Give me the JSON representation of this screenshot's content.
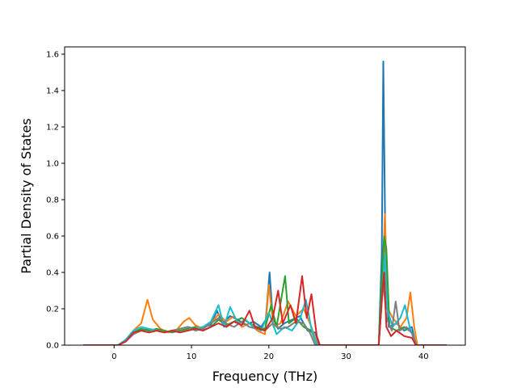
{
  "chart_data": {
    "type": "line",
    "title": "",
    "xlabel": "Frequency (THz)",
    "ylabel": "Partial Density of States",
    "xlim": [
      -6.4,
      45.4
    ],
    "ylim": [
      0.0,
      1.64
    ],
    "xticks": [
      0,
      10,
      20,
      30,
      40
    ],
    "yticks": [
      0.0,
      0.2,
      0.4,
      0.6,
      0.8,
      1.0,
      1.2,
      1.4,
      1.6
    ],
    "xtick_labels": [
      "0",
      "10",
      "20",
      "30",
      "40"
    ],
    "ytick_labels": [
      "0.0",
      "0.2",
      "0.4",
      "0.6",
      "0.8",
      "1.0",
      "1.2",
      "1.4",
      "1.6"
    ],
    "grid": false,
    "legend": "none",
    "series": [
      {
        "color": "#1f77b4",
        "points": [
          [
            -4,
            0
          ],
          [
            0.5,
            0
          ],
          [
            1.5,
            0.02
          ],
          [
            2.5,
            0.07
          ],
          [
            3.5,
            0.08
          ],
          [
            4.5,
            0.09
          ],
          [
            5.5,
            0.08
          ],
          [
            6.5,
            0.07
          ],
          [
            7.5,
            0.08
          ],
          [
            8.5,
            0.09
          ],
          [
            9.5,
            0.1
          ],
          [
            10.5,
            0.09
          ],
          [
            11.5,
            0.1
          ],
          [
            12.5,
            0.11
          ],
          [
            13.3,
            0.19
          ],
          [
            14,
            0.12
          ],
          [
            15,
            0.16
          ],
          [
            16,
            0.14
          ],
          [
            17,
            0.11
          ],
          [
            18,
            0.13
          ],
          [
            19,
            0.1
          ],
          [
            19.6,
            0.14
          ],
          [
            20.1,
            0.4
          ],
          [
            20.5,
            0.15
          ],
          [
            21.2,
            0.09
          ],
          [
            22,
            0.12
          ],
          [
            23,
            0.14
          ],
          [
            24,
            0.16
          ],
          [
            25,
            0.08
          ],
          [
            26,
            0.07
          ],
          [
            26.5,
            0.0
          ],
          [
            34.2,
            0.0
          ],
          [
            34.6,
            0.5
          ],
          [
            34.8,
            1.56
          ],
          [
            35.1,
            0.4
          ],
          [
            35.5,
            0.1
          ],
          [
            36.5,
            0.12
          ],
          [
            37.5,
            0.08
          ],
          [
            38.5,
            0.1
          ],
          [
            39,
            0.0
          ],
          [
            43,
            0
          ]
        ]
      },
      {
        "color": "#ff7f0e",
        "points": [
          [
            -4,
            0
          ],
          [
            0.5,
            0
          ],
          [
            1.5,
            0.03
          ],
          [
            2.5,
            0.08
          ],
          [
            3.5,
            0.12
          ],
          [
            4.3,
            0.25
          ],
          [
            5,
            0.14
          ],
          [
            6,
            0.09
          ],
          [
            7,
            0.07
          ],
          [
            8,
            0.08
          ],
          [
            9,
            0.13
          ],
          [
            9.7,
            0.15
          ],
          [
            10.5,
            0.11
          ],
          [
            11.5,
            0.09
          ],
          [
            12.5,
            0.12
          ],
          [
            13.5,
            0.17
          ],
          [
            14.5,
            0.13
          ],
          [
            15.5,
            0.16
          ],
          [
            16.5,
            0.1
          ],
          [
            17.5,
            0.12
          ],
          [
            18.5,
            0.08
          ],
          [
            19.5,
            0.06
          ],
          [
            20,
            0.33
          ],
          [
            20.6,
            0.1
          ],
          [
            21.5,
            0.12
          ],
          [
            22.5,
            0.24
          ],
          [
            23.5,
            0.16
          ],
          [
            24.5,
            0.2
          ],
          [
            25.5,
            0.1
          ],
          [
            26.3,
            0.0
          ],
          [
            34.2,
            0.0
          ],
          [
            34.7,
            0.3
          ],
          [
            35.0,
            0.72
          ],
          [
            35.4,
            0.2
          ],
          [
            36,
            0.15
          ],
          [
            37,
            0.1
          ],
          [
            37.8,
            0.15
          ],
          [
            38.3,
            0.29
          ],
          [
            38.8,
            0.1
          ],
          [
            39.2,
            0.0
          ],
          [
            43,
            0
          ]
        ]
      },
      {
        "color": "#2ca02c",
        "points": [
          [
            -4,
            0
          ],
          [
            0.5,
            0
          ],
          [
            1.5,
            0.02
          ],
          [
            2.5,
            0.07
          ],
          [
            3.5,
            0.09
          ],
          [
            4.5,
            0.08
          ],
          [
            5.5,
            0.09
          ],
          [
            6.5,
            0.08
          ],
          [
            7.5,
            0.07
          ],
          [
            8.5,
            0.08
          ],
          [
            9.5,
            0.09
          ],
          [
            10.5,
            0.1
          ],
          [
            11.5,
            0.08
          ],
          [
            12.5,
            0.1
          ],
          [
            13.5,
            0.14
          ],
          [
            14.5,
            0.11
          ],
          [
            15.5,
            0.13
          ],
          [
            16.5,
            0.15
          ],
          [
            17.5,
            0.12
          ],
          [
            18.5,
            0.1
          ],
          [
            19.5,
            0.09
          ],
          [
            20.3,
            0.22
          ],
          [
            21,
            0.1
          ],
          [
            22.1,
            0.38
          ],
          [
            22.6,
            0.12
          ],
          [
            23.5,
            0.15
          ],
          [
            24.5,
            0.1
          ],
          [
            25.5,
            0.08
          ],
          [
            26.2,
            0.0
          ],
          [
            34.2,
            0.0
          ],
          [
            34.7,
            0.45
          ],
          [
            34.9,
            0.6
          ],
          [
            35.2,
            0.53
          ],
          [
            35.6,
            0.1
          ],
          [
            36.5,
            0.08
          ],
          [
            37.5,
            0.1
          ],
          [
            38.5,
            0.07
          ],
          [
            39,
            0.0
          ],
          [
            43,
            0
          ]
        ]
      },
      {
        "color": "#17becf",
        "points": [
          [
            -4,
            0
          ],
          [
            0.5,
            0
          ],
          [
            1.5,
            0.03
          ],
          [
            2.5,
            0.08
          ],
          [
            3.5,
            0.1
          ],
          [
            4.5,
            0.09
          ],
          [
            5.5,
            0.08
          ],
          [
            6.5,
            0.07
          ],
          [
            7.5,
            0.08
          ],
          [
            8.5,
            0.07
          ],
          [
            9.5,
            0.08
          ],
          [
            10.5,
            0.09
          ],
          [
            11.5,
            0.1
          ],
          [
            12.5,
            0.13
          ],
          [
            13.5,
            0.22
          ],
          [
            14.2,
            0.1
          ],
          [
            15,
            0.21
          ],
          [
            16,
            0.12
          ],
          [
            17,
            0.14
          ],
          [
            18,
            0.1
          ],
          [
            19,
            0.08
          ],
          [
            20,
            0.18
          ],
          [
            21,
            0.06
          ],
          [
            22,
            0.1
          ],
          [
            23,
            0.08
          ],
          [
            24,
            0.14
          ],
          [
            24.8,
            0.25
          ],
          [
            25.5,
            0.09
          ],
          [
            26.2,
            0.0
          ],
          [
            34.2,
            0.0
          ],
          [
            34.7,
            0.3
          ],
          [
            35,
            0.5
          ],
          [
            35.3,
            0.2
          ],
          [
            36,
            0.1
          ],
          [
            37,
            0.15
          ],
          [
            37.6,
            0.22
          ],
          [
            38.2,
            0.1
          ],
          [
            39,
            0.0
          ],
          [
            43,
            0
          ]
        ]
      },
      {
        "color": "#7f7f7f",
        "points": [
          [
            -4,
            0
          ],
          [
            0.5,
            0
          ],
          [
            1.5,
            0.02
          ],
          [
            2.5,
            0.06
          ],
          [
            3.5,
            0.08
          ],
          [
            4.5,
            0.07
          ],
          [
            5.5,
            0.08
          ],
          [
            6.5,
            0.07
          ],
          [
            7.5,
            0.08
          ],
          [
            8.5,
            0.09
          ],
          [
            9.5,
            0.1
          ],
          [
            10.5,
            0.08
          ],
          [
            11.5,
            0.09
          ],
          [
            12.5,
            0.12
          ],
          [
            13.5,
            0.15
          ],
          [
            14.5,
            0.12
          ],
          [
            15.5,
            0.1
          ],
          [
            16.5,
            0.13
          ],
          [
            17.5,
            0.1
          ],
          [
            18.5,
            0.09
          ],
          [
            19.5,
            0.08
          ],
          [
            20.5,
            0.12
          ],
          [
            21.5,
            0.09
          ],
          [
            22.5,
            0.1
          ],
          [
            23.5,
            0.13
          ],
          [
            24.5,
            0.12
          ],
          [
            25.3,
            0.07
          ],
          [
            26,
            0.0
          ],
          [
            34.2,
            0.0
          ],
          [
            34.8,
            0.35
          ],
          [
            35.2,
            0.15
          ],
          [
            35.9,
            0.08
          ],
          [
            36.4,
            0.24
          ],
          [
            36.9,
            0.08
          ],
          [
            37.8,
            0.1
          ],
          [
            38.6,
            0.06
          ],
          [
            39.1,
            0.0
          ],
          [
            43,
            0
          ]
        ]
      },
      {
        "color": "#d62728",
        "points": [
          [
            -4,
            0
          ],
          [
            0.5,
            0
          ],
          [
            1.5,
            0.02
          ],
          [
            2.5,
            0.07
          ],
          [
            3.5,
            0.08
          ],
          [
            4.5,
            0.07
          ],
          [
            5.5,
            0.08
          ],
          [
            6.5,
            0.07
          ],
          [
            7.5,
            0.08
          ],
          [
            8.5,
            0.07
          ],
          [
            9.5,
            0.08
          ],
          [
            10.5,
            0.09
          ],
          [
            11.5,
            0.08
          ],
          [
            12.5,
            0.1
          ],
          [
            13.5,
            0.12
          ],
          [
            14.5,
            0.1
          ],
          [
            15.5,
            0.13
          ],
          [
            16.5,
            0.11
          ],
          [
            17.5,
            0.19
          ],
          [
            18.2,
            0.1
          ],
          [
            19.5,
            0.08
          ],
          [
            20.5,
            0.15
          ],
          [
            21.2,
            0.3
          ],
          [
            21.8,
            0.12
          ],
          [
            22.8,
            0.22
          ],
          [
            23.5,
            0.12
          ],
          [
            24.3,
            0.38
          ],
          [
            24.9,
            0.15
          ],
          [
            25.5,
            0.28
          ],
          [
            26.2,
            0.05
          ],
          [
            26.6,
            0.0
          ],
          [
            34.2,
            0.0
          ],
          [
            34.7,
            0.3
          ],
          [
            34.9,
            0.4
          ],
          [
            35.2,
            0.1
          ],
          [
            35.8,
            0.05
          ],
          [
            36.5,
            0.08
          ],
          [
            37.5,
            0.05
          ],
          [
            38.5,
            0.04
          ],
          [
            39,
            0.0
          ],
          [
            43,
            0
          ]
        ]
      }
    ]
  }
}
